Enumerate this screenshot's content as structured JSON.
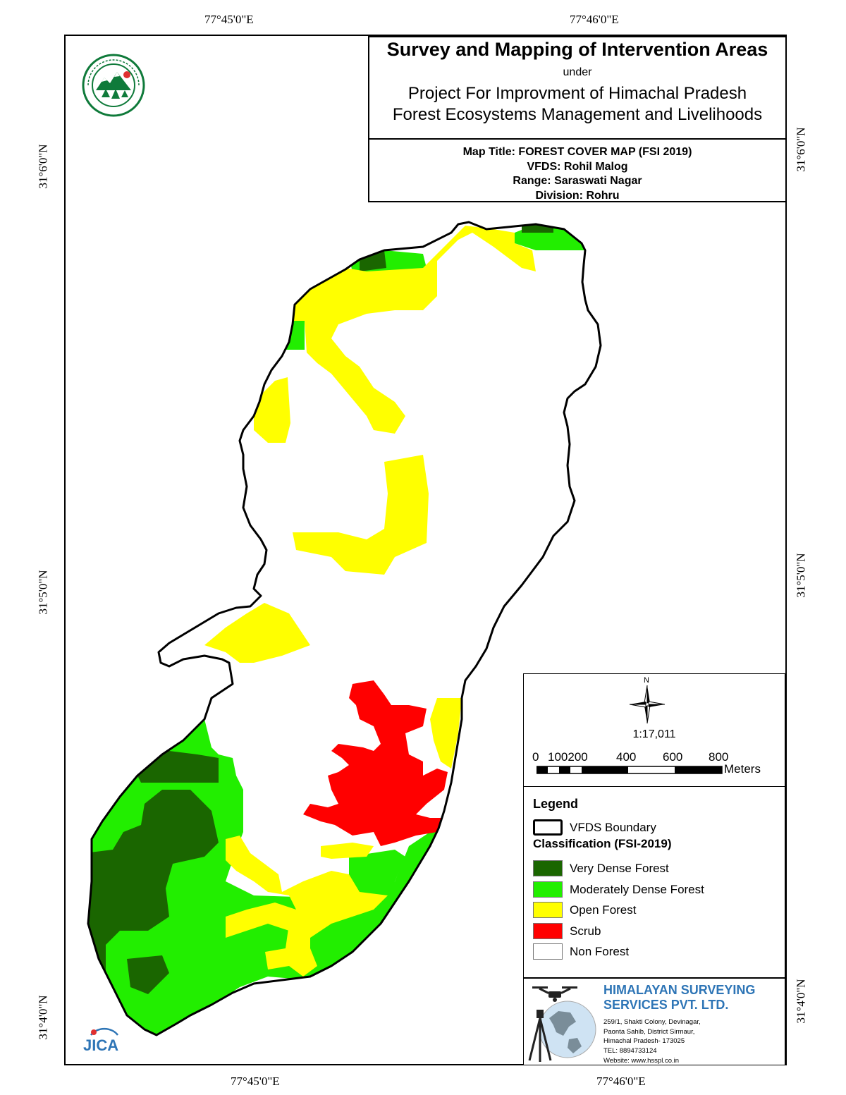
{
  "map": {
    "coords": {
      "top_left": "77°45'0\"E",
      "top_right": "77°46'0\"E",
      "bottom_left": "77°45'0\"E",
      "bottom_right": "77°46'0\"E",
      "left_top": "31°6'0\"N",
      "left_mid": "31°5'0\"N",
      "left_bottom": "31°4'0\"N",
      "right_top": "31°6'0\"N",
      "right_mid": "31°5'0\"N",
      "right_bottom": "31°4'0\"N"
    },
    "colors": {
      "very_dense": "#1a6600",
      "moderately_dense": "#22ee00",
      "open": "#ffff00",
      "scrub": "#ff0000",
      "non_forest": "#ffffff",
      "boundary": "#000000"
    }
  },
  "title_block": {
    "heading": "Survey and Mapping of Intervention Areas",
    "under": "under",
    "project_line1": "Project For Improvment of Himachal Pradesh",
    "project_line2": "Forest Ecosystems Management and Livelihoods",
    "map_title": "Map Title: FOREST COVER MAP (FSI 2019)",
    "vfds": "VFDS: Rohil Malog",
    "range": "Range: Saraswati Nagar",
    "division": "Division: Rohru"
  },
  "north_arrow": {
    "label": "N",
    "scale": "1:17,011",
    "ticks": [
      "0",
      "100200",
      "400",
      "600",
      "800"
    ],
    "units": "Meters"
  },
  "legend": {
    "title": "Legend",
    "boundary": "VFDS Boundary",
    "class_title": "Classification (FSI-2019)",
    "items": [
      {
        "label": "Very Dense Forest",
        "color": "#1a6600"
      },
      {
        "label": "Moderately Dense Forest",
        "color": "#22ee00"
      },
      {
        "label": "Open Forest",
        "color": "#ffff00"
      },
      {
        "label": "Scrub",
        "color": "#ff0000"
      },
      {
        "label": "Non Forest",
        "color": "#ffffff"
      }
    ]
  },
  "company": {
    "name_line1": "HIMALAYAN SURVEYING",
    "name_line2": "SERVICES PVT. LTD.",
    "addr1": "259/1, Shakti Colony, Devinagar,",
    "addr2": "Paonta Sahib, District Sirmaur,",
    "addr3": "Himachal Pradesh- 173025",
    "tel": "TEL: 8894733124",
    "web": "Website: www.hsspl.co.in"
  },
  "logos": {
    "jica": "JICA",
    "dept_emblem": "forest-department-emblem"
  }
}
